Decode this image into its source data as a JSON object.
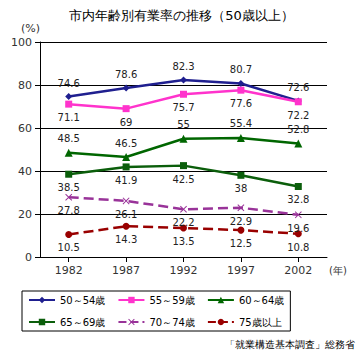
{
  "chart_data": {
    "type": "line",
    "title": "市内年齢別有業率の推移（50歳以上）",
    "y_label": "(%)",
    "x_label": "(年)",
    "source": "「就業構造基本調査」総務省",
    "categories": [
      "1982",
      "1987",
      "1992",
      "1997",
      "2002"
    ],
    "series": [
      {
        "name": "50～54歳",
        "color": "#1f1f8f",
        "marker": "diamond",
        "line_style": "solid",
        "values": [
          74.6,
          78.6,
          82.3,
          80.7,
          72.6
        ]
      },
      {
        "name": "55～59歳",
        "color": "#ff33cc",
        "marker": "square",
        "line_style": "solid",
        "values": [
          71.1,
          69.0,
          75.7,
          77.6,
          72.2
        ]
      },
      {
        "name": "60～64歳",
        "color": "#006600",
        "marker": "triangle",
        "line_style": "solid",
        "values": [
          48.5,
          46.5,
          55.0,
          55.4,
          52.8
        ]
      },
      {
        "name": "65～69歳",
        "color": "#0b5e0b",
        "marker": "square",
        "line_style": "solid",
        "values": [
          38.5,
          41.9,
          42.5,
          38.0,
          32.8
        ]
      },
      {
        "name": "70～74歳",
        "color": "#993399",
        "marker": "x",
        "line_style": "dashed",
        "values": [
          27.8,
          26.1,
          22.2,
          22.9,
          19.6
        ]
      },
      {
        "name": "75歳以上",
        "color": "#990000",
        "marker": "circle",
        "line_style": "dashed",
        "values": [
          10.5,
          14.3,
          13.5,
          12.5,
          10.8
        ]
      }
    ],
    "ylim": [
      0,
      100
    ],
    "yticks": [
      0,
      20,
      40,
      60,
      80,
      100
    ],
    "grid": true,
    "legend": "bottom",
    "data_labels": true
  }
}
